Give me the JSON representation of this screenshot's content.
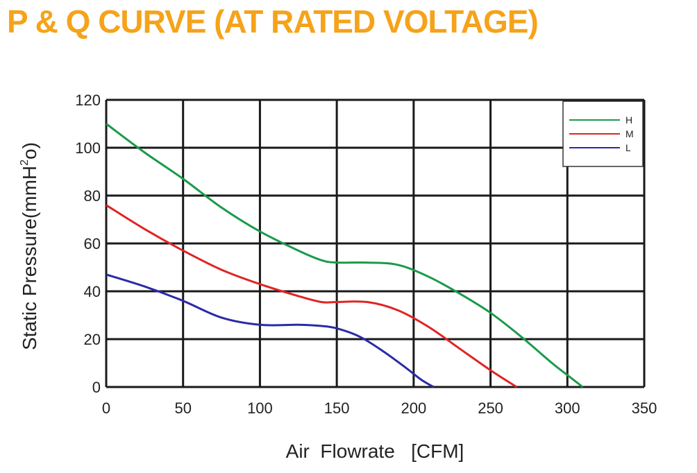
{
  "title": "P & Q CURVE (AT RATED VOLTAGE)",
  "chart_data": {
    "type": "line",
    "xlabel": "Air  Flowrate   [CFM]",
    "ylabel_prefix": "Static Pressure(mmH",
    "ylabel_sup": "2",
    "ylabel_suffix": "o)",
    "xlim": [
      0,
      350
    ],
    "ylim": [
      0,
      120
    ],
    "x_ticks": [
      0,
      50,
      100,
      150,
      200,
      250,
      300,
      350
    ],
    "y_ticks": [
      0,
      20,
      40,
      60,
      80,
      100,
      120
    ],
    "grid": true,
    "legend_position": "top-right",
    "series": [
      {
        "name": "H",
        "color": "#1a9a4a",
        "x": [
          0,
          25,
          50,
          75,
          100,
          125,
          140,
          150,
          170,
          190,
          210,
          230,
          250,
          270,
          290,
          300,
          310
        ],
        "y": [
          110,
          98,
          87,
          75,
          65,
          57,
          53,
          52,
          52,
          51,
          46,
          39,
          31,
          21,
          10,
          5,
          0
        ]
      },
      {
        "name": "M",
        "color": "#e02424",
        "x": [
          0,
          25,
          50,
          75,
          100,
          125,
          140,
          150,
          170,
          190,
          210,
          230,
          250,
          267
        ],
        "y": [
          76,
          66,
          57,
          49,
          43,
          38,
          35.5,
          35.5,
          35.5,
          32,
          25,
          16,
          7,
          0
        ]
      },
      {
        "name": "L",
        "color": "#2a2aa8",
        "x": [
          0,
          25,
          50,
          75,
          100,
          125,
          140,
          150,
          165,
          180,
          195,
          205,
          213
        ],
        "y": [
          47,
          42,
          36,
          29,
          26,
          26,
          25.5,
          24.5,
          21,
          15,
          8,
          3,
          0
        ]
      }
    ]
  }
}
